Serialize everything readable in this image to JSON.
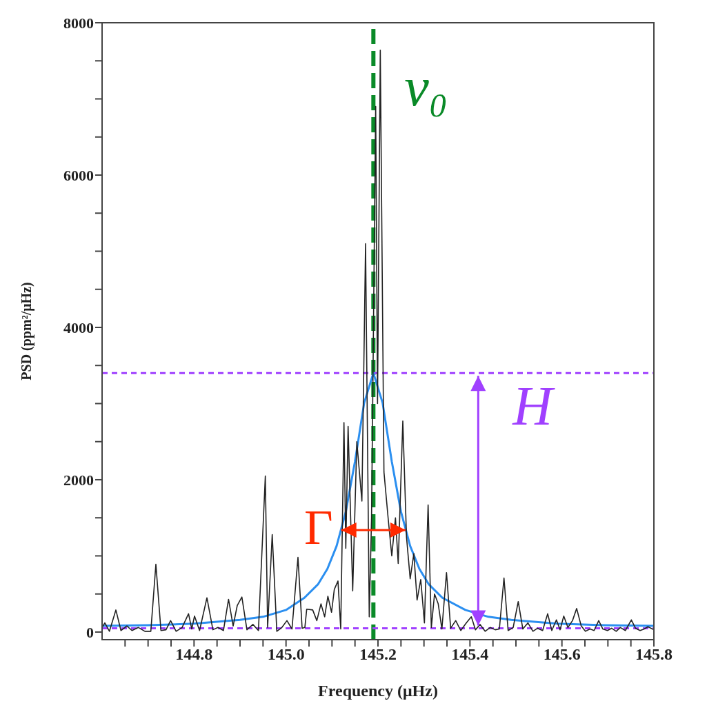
{
  "chart_data": {
    "type": "line",
    "xlabel": "Frequency (μHz)",
    "ylabel": "PSD (ppm²/μHz)",
    "xlim": [
      144.6,
      145.8
    ],
    "xticks": [
      {
        "value": 144.65,
        "label": null
      },
      {
        "value": 144.7,
        "label": null
      },
      {
        "value": 144.75,
        "label": null
      },
      {
        "value": 144.8,
        "label": "144.8"
      },
      {
        "value": 144.85,
        "label": null
      },
      {
        "value": 144.9,
        "label": null
      },
      {
        "value": 144.95,
        "label": null
      },
      {
        "value": 145.0,
        "label": "145.0"
      },
      {
        "value": 145.05,
        "label": null
      },
      {
        "value": 145.1,
        "label": null
      },
      {
        "value": 145.15,
        "label": null
      },
      {
        "value": 145.2,
        "label": "145.2"
      },
      {
        "value": 145.25,
        "label": null
      },
      {
        "value": 145.3,
        "label": null
      },
      {
        "value": 145.35,
        "label": null
      },
      {
        "value": 145.4,
        "label": "145.4"
      },
      {
        "value": 145.45,
        "label": null
      },
      {
        "value": 145.5,
        "label": null
      },
      {
        "value": 145.55,
        "label": null
      },
      {
        "value": 145.6,
        "label": "145.6"
      },
      {
        "value": 145.65,
        "label": null
      },
      {
        "value": 145.7,
        "label": null
      },
      {
        "value": 145.75,
        "label": null
      },
      {
        "value": 145.8,
        "label": "145.8"
      }
    ],
    "ylim": [
      -100,
      8000
    ],
    "yticks": [
      0,
      {
        "value": 500,
        "label": null
      },
      {
        "value": 1000,
        "label": null
      },
      {
        "value": 1500,
        "label": null
      },
      2000,
      {
        "value": 2500,
        "label": null
      },
      {
        "value": 3000,
        "label": null
      },
      {
        "value": 3500,
        "label": null
      },
      4000,
      {
        "value": 4500,
        "label": null
      },
      {
        "value": 5000,
        "label": null
      },
      {
        "value": 5500,
        "label": null
      },
      6000,
      {
        "value": 6500,
        "label": null
      },
      {
        "value": 7000,
        "label": null
      },
      {
        "value": 7500,
        "label": null
      },
      8000
    ],
    "marker": "none",
    "series": [
      {
        "color": "#222222",
        "x": [
          144.6,
          144.606,
          144.616,
          144.63,
          144.641,
          144.654,
          144.665,
          144.679,
          144.693,
          144.706,
          144.717,
          144.728,
          144.739,
          144.749,
          144.761,
          144.774,
          144.788,
          144.795,
          144.801,
          144.812,
          144.828,
          144.841,
          144.852,
          144.864,
          144.875,
          144.885,
          144.894,
          144.904,
          144.915,
          144.928,
          144.94,
          144.955,
          144.96,
          144.97,
          144.98,
          144.991,
          145.002,
          145.013,
          145.026,
          145.035,
          145.041,
          145.045,
          145.058,
          145.067,
          145.076,
          145.084,
          145.091,
          145.099,
          145.105,
          145.113,
          145.119,
          145.126,
          145.13,
          145.135,
          145.145,
          145.154,
          145.165,
          145.173,
          145.181,
          145.186,
          145.195,
          145.199,
          145.205,
          145.213,
          145.222,
          145.23,
          145.238,
          145.244,
          145.254,
          145.262,
          145.27,
          145.278,
          145.285,
          145.293,
          145.301,
          145.309,
          145.316,
          145.323,
          145.331,
          145.339,
          145.349,
          145.358,
          145.369,
          145.38,
          145.392,
          145.403,
          145.412,
          145.422,
          145.433,
          145.444,
          145.455,
          145.464,
          145.474,
          145.483,
          145.494,
          145.505,
          145.515,
          145.526,
          145.537,
          145.547,
          145.558,
          145.569,
          145.578,
          145.588,
          145.596,
          145.604,
          145.613,
          145.623,
          145.632,
          145.642,
          145.651,
          145.661,
          145.67,
          145.68,
          145.689,
          145.699,
          145.708,
          145.718,
          145.727,
          145.738,
          145.751,
          145.76,
          145.77,
          145.779,
          145.787,
          145.8
        ],
        "values": [
          60,
          120,
          10,
          290,
          20,
          80,
          20,
          60,
          10,
          10,
          890,
          20,
          30,
          150,
          10,
          60,
          240,
          40,
          210,
          20,
          450,
          30,
          60,
          20,
          430,
          80,
          350,
          460,
          30,
          100,
          20,
          2050,
          60,
          1280,
          10,
          60,
          150,
          40,
          980,
          50,
          60,
          300,
          290,
          150,
          370,
          200,
          470,
          260,
          560,
          670,
          40,
          2750,
          1100,
          2700,
          540,
          2500,
          1720,
          5100,
          200,
          1500,
          6900,
          3000,
          7640,
          2100,
          1500,
          1000,
          1500,
          900,
          2770,
          1250,
          700,
          1030,
          420,
          690,
          120,
          1670,
          60,
          500,
          370,
          40,
          780,
          50,
          150,
          20,
          120,
          200,
          30,
          100,
          10,
          60,
          30,
          40,
          710,
          20,
          60,
          400,
          40,
          120,
          10,
          50,
          20,
          240,
          20,
          160,
          30,
          210,
          60,
          150,
          310,
          80,
          10,
          40,
          20,
          150,
          40,
          20,
          50,
          10,
          60,
          20,
          160,
          50,
          20,
          40,
          70,
          30
        ]
      },
      {
        "color": "#2b8ff0",
        "x": [
          144.6,
          144.7,
          144.8,
          144.9,
          144.95,
          145.0,
          145.04,
          145.07,
          145.09,
          145.11,
          145.13,
          145.15,
          145.17,
          145.19,
          145.21,
          145.23,
          145.25,
          145.27,
          145.29,
          145.31,
          145.34,
          145.39,
          145.44,
          145.49,
          145.59,
          145.69,
          145.8
        ],
        "values": [
          80,
          90,
          110,
          160,
          200,
          290,
          450,
          630,
          830,
          1130,
          1580,
          2240,
          3010,
          3400,
          3010,
          2240,
          1580,
          1130,
          830,
          630,
          450,
          290,
          200,
          160,
          110,
          90,
          80
        ]
      }
    ],
    "ref_lines": [
      {
        "axis": "x",
        "value": 145.19,
        "label": "ν₀",
        "color": "#0a8a28",
        "line_style": "dashed"
      },
      {
        "axis": "y",
        "value": 3400,
        "color": "#a040ff",
        "line_style": "dotted"
      },
      {
        "axis": "y",
        "value": 50,
        "color": "#a040ff",
        "line_style": "dotted"
      }
    ],
    "annotations": [
      "H",
      {
        "text": "Γ",
        "x": 145.12,
        "y": 1340
      }
    ]
  }
}
